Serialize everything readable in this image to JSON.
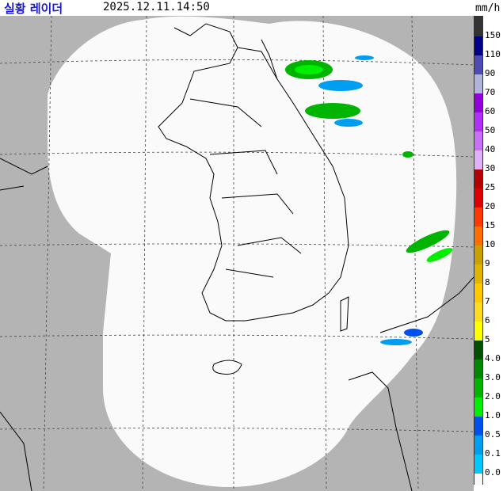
{
  "header": {
    "title": "실황 레이더",
    "timestamp": "2025.12.11.14:50",
    "unit": "mm/h"
  },
  "map": {
    "background_color": "#b4b4b4",
    "coverage_color": "#fafafa",
    "grid": "dashed"
  },
  "legend": {
    "bands": [
      {
        "color": "#333333",
        "label": ""
      },
      {
        "color": "#000088",
        "label": "150"
      },
      {
        "color": "#4c4cb4",
        "label": "110"
      },
      {
        "color": "#b0b4dc",
        "label": "90"
      },
      {
        "color": "#9400dc",
        "label": "70"
      },
      {
        "color": "#b030f8",
        "label": "60"
      },
      {
        "color": "#c870f8",
        "label": "50"
      },
      {
        "color": "#e0b0fa",
        "label": "40"
      },
      {
        "color": "#b40000",
        "label": "30"
      },
      {
        "color": "#dc0000",
        "label": "25"
      },
      {
        "color": "#ff3800",
        "label": "20"
      },
      {
        "color": "#ff6e00",
        "label": "15"
      },
      {
        "color": "#c8a000",
        "label": "10"
      },
      {
        "color": "#e0b400",
        "label": "9"
      },
      {
        "color": "#ffc800",
        "label": "8"
      },
      {
        "color": "#ffdc20",
        "label": "7"
      },
      {
        "color": "#ffff00",
        "label": "6"
      },
      {
        "color": "#005000",
        "label": "5"
      },
      {
        "color": "#008800",
        "label": "4.0"
      },
      {
        "color": "#00b400",
        "label": "3.0"
      },
      {
        "color": "#00ee00",
        "label": "2.0"
      },
      {
        "color": "#0050f0",
        "label": "1.0"
      },
      {
        "color": "#009ef0",
        "label": "0.5"
      },
      {
        "color": "#00c8ff",
        "label": "0.1"
      },
      {
        "color": "#f8f8f8",
        "label": "0.0"
      }
    ]
  }
}
